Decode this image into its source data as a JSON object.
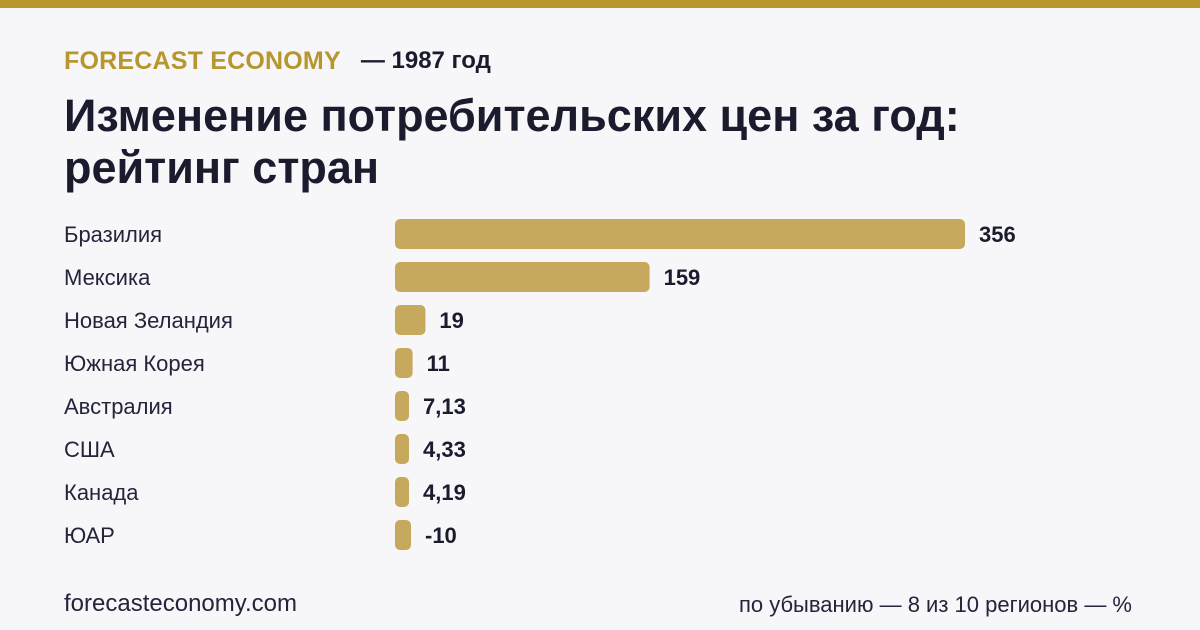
{
  "header": {
    "brand": "FORECAST ECONOMY",
    "year_label": "— 1987 год"
  },
  "title": "Изменение потребительских цен за год: рейтинг стран",
  "footer": {
    "site": "forecasteconomy.com",
    "note": "по убыванию — 8 из 10 регионов — %"
  },
  "colors": {
    "accent": "#b8962e",
    "bar": "#c6a95c",
    "text_dark": "#1b1b2e",
    "text_body": "#24243a"
  },
  "chart_data": {
    "type": "bar",
    "orientation": "horizontal",
    "categories": [
      "Бразилия",
      "Мексика",
      "Новая Зеландия",
      "Южная Корея",
      "Австралия",
      "США",
      "Канада",
      "ЮАР"
    ],
    "values": [
      356,
      159,
      19,
      11,
      7.13,
      4.33,
      4.19,
      -10
    ],
    "value_labels": [
      "356",
      "159",
      "19",
      "11",
      "7,13",
      "4,33",
      "4,19",
      "-10"
    ],
    "xlim": [
      0,
      356
    ],
    "grid": false,
    "legend": "none"
  }
}
